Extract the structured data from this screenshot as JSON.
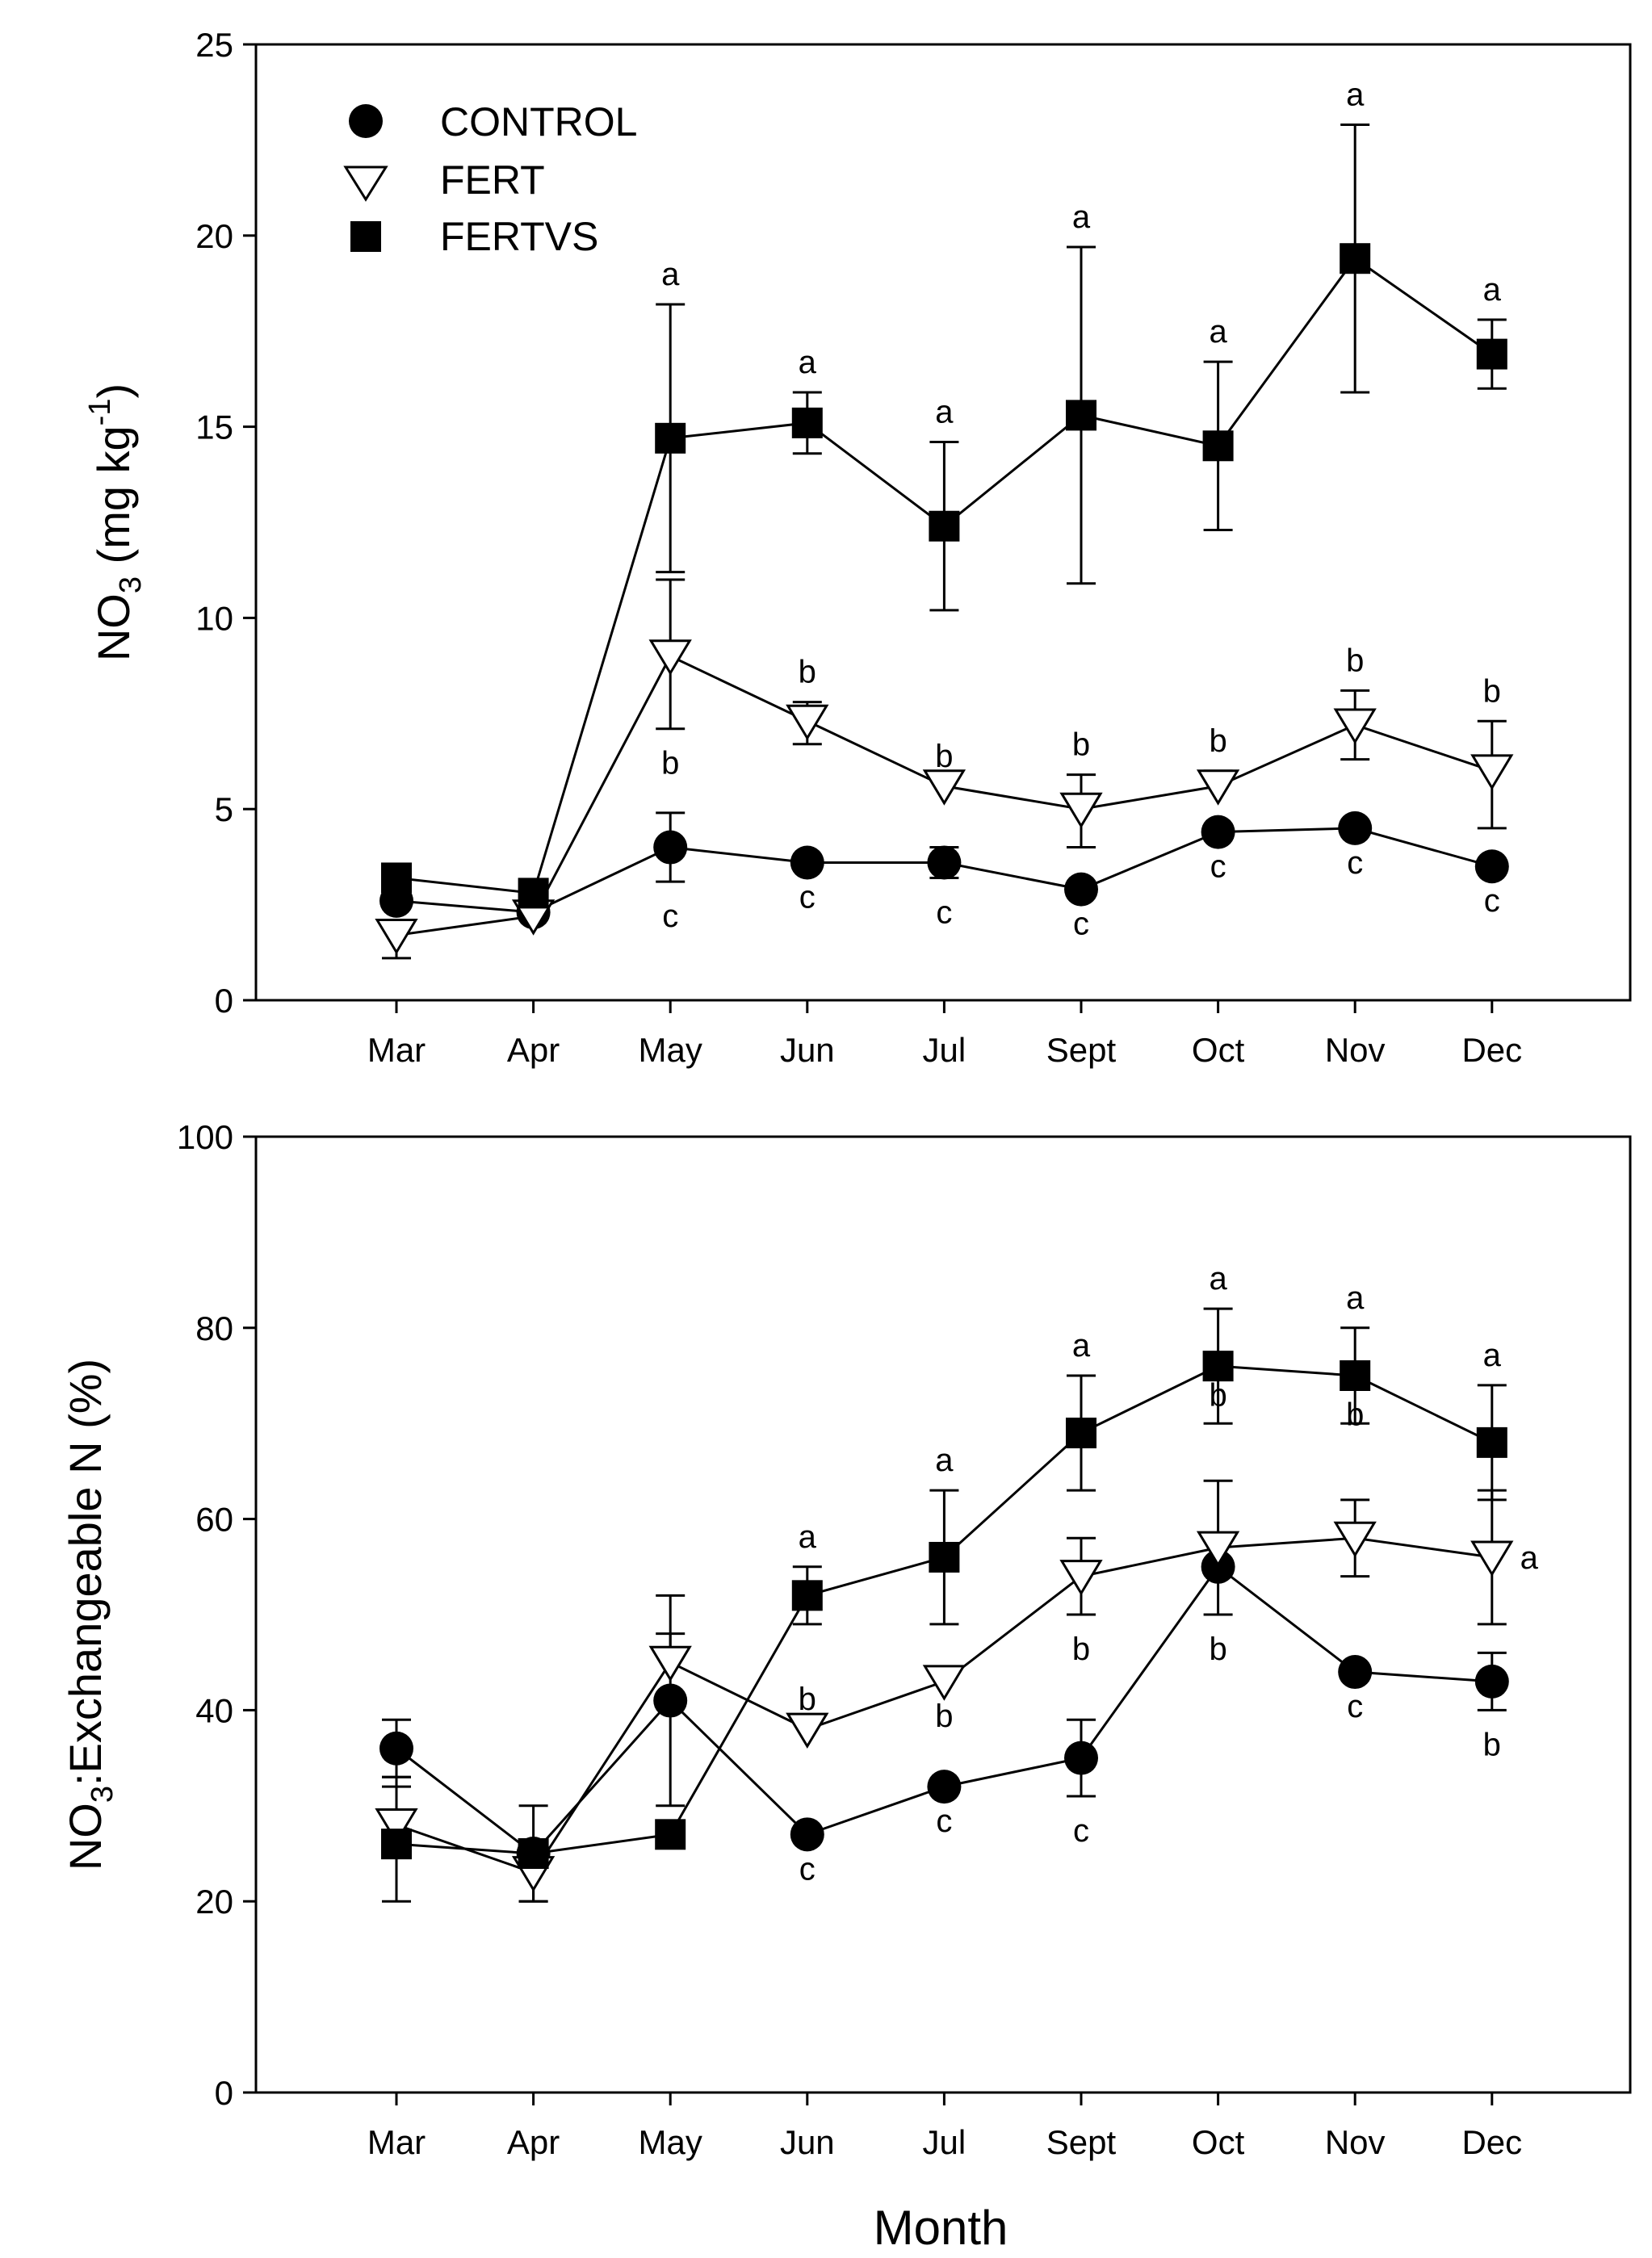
{
  "chart_data": [
    {
      "type": "line",
      "ylabel": "NO3 (mg kg-1)",
      "ylabel_parts": {
        "base": "NO",
        "sub": "3",
        "rest": " (mg kg",
        "sup": "-1",
        "close": ")"
      },
      "xlabel": "",
      "ylim": [
        0,
        25
      ],
      "yticks": [
        0,
        5,
        10,
        15,
        20,
        25
      ],
      "categories": [
        "Mar",
        "Apr",
        "May",
        "Jun",
        "Jul",
        "Sept",
        "Oct",
        "Nov",
        "Dec"
      ],
      "legend": {
        "placement": "top-left",
        "entries": [
          "CONTROL",
          "FERT",
          "FERTVS"
        ]
      },
      "series": [
        {
          "name": "CONTROL",
          "marker": "circle",
          "values": [
            2.6,
            2.3,
            4.0,
            3.6,
            3.6,
            2.9,
            4.4,
            4.5,
            3.5
          ],
          "err_up": [
            null,
            null,
            0.9,
            null,
            0.4,
            null,
            null,
            null,
            null
          ],
          "err_down": [
            null,
            null,
            0.9,
            null,
            0.4,
            null,
            null,
            null,
            null
          ],
          "letters": [
            null,
            null,
            "c",
            "c",
            "c",
            "c",
            "c",
            "c",
            "c"
          ],
          "letter_pos": [
            null,
            null,
            "below",
            "below",
            "below",
            "below",
            "below",
            "below",
            "below"
          ]
        },
        {
          "name": "FERT",
          "marker": "triangle-down",
          "values": [
            1.7,
            2.2,
            9.0,
            7.3,
            5.6,
            5.0,
            5.6,
            7.2,
            6.0
          ],
          "err_up": [
            null,
            null,
            2.0,
            0.5,
            null,
            0.9,
            0.4,
            0.9,
            1.3
          ],
          "err_down": [
            0.6,
            null,
            1.9,
            0.6,
            null,
            1.0,
            null,
            0.9,
            1.5
          ],
          "letters": [
            null,
            null,
            "b",
            "b",
            "b",
            "b",
            "b",
            "b",
            "b"
          ],
          "letter_pos": [
            null,
            null,
            "below",
            "above",
            "above",
            "above",
            "above",
            "above",
            "above"
          ]
        },
        {
          "name": "FERTVS",
          "marker": "square",
          "values": [
            3.2,
            2.8,
            14.7,
            15.1,
            12.4,
            15.3,
            14.5,
            19.4,
            16.9
          ],
          "err_up": [
            null,
            null,
            3.5,
            0.8,
            2.2,
            4.4,
            2.2,
            3.5,
            0.9
          ],
          "err_down": [
            null,
            null,
            3.5,
            0.8,
            2.2,
            4.4,
            2.2,
            3.5,
            0.9
          ],
          "letters": [
            null,
            null,
            "a",
            "a",
            "a",
            "a",
            "a",
            "a",
            "a"
          ],
          "letter_pos": [
            null,
            null,
            "above",
            "above",
            "above",
            "above",
            "above",
            "above",
            "above"
          ]
        }
      ]
    },
    {
      "type": "line",
      "ylabel": "NO3:Exchangeable N (%)",
      "ylabel_parts": {
        "base": "NO",
        "sub": "3",
        "rest": ":Exchangeable N (%)"
      },
      "xlabel": "Month",
      "ylim": [
        0,
        100
      ],
      "yticks": [
        0,
        20,
        40,
        60,
        80,
        100
      ],
      "categories": [
        "Mar",
        "Apr",
        "May",
        "Jun",
        "Jul",
        "Sept",
        "Oct",
        "Nov",
        "Dec"
      ],
      "series": [
        {
          "name": "CONTROL",
          "marker": "circle",
          "values": [
            36,
            25,
            41,
            27,
            32,
            35,
            55,
            44,
            43
          ],
          "err_up": [
            3,
            null,
            7,
            null,
            null,
            4,
            9,
            null,
            3
          ],
          "err_down": [
            3,
            null,
            11,
            null,
            null,
            4,
            5,
            null,
            3
          ],
          "letters": [
            null,
            null,
            null,
            "c",
            "c",
            "c",
            "b",
            "c",
            "b"
          ],
          "letter_pos": [
            null,
            null,
            null,
            "below",
            "below",
            "below",
            "below",
            "below",
            "below"
          ]
        },
        {
          "name": "FERT",
          "marker": "triangle-down",
          "values": [
            28,
            23,
            45,
            38,
            43,
            54,
            57,
            58,
            56
          ],
          "err_up": [
            5,
            null,
            7,
            null,
            null,
            4,
            null,
            4,
            7
          ],
          "err_down": [
            null,
            3,
            null,
            null,
            null,
            4,
            null,
            4,
            7
          ],
          "letters": [
            null,
            null,
            null,
            "b",
            "b",
            "b",
            null,
            null,
            "a"
          ],
          "letter_pos": [
            null,
            null,
            null,
            "above",
            "below",
            "below",
            null,
            null,
            "right"
          ]
        },
        {
          "name": "FERTVS",
          "marker": "square",
          "values": [
            26,
            25,
            27,
            52,
            56,
            69,
            76,
            75,
            68
          ],
          "err_up": [
            6,
            5,
            null,
            3,
            7,
            6,
            6,
            5,
            6
          ],
          "err_down": [
            6,
            5,
            null,
            3,
            7,
            6,
            6,
            5,
            6
          ],
          "letters": [
            null,
            null,
            null,
            "a",
            "a",
            "a",
            "a",
            "a",
            "a"
          ],
          "letter_pos": [
            null,
            null,
            null,
            "above",
            "above",
            "above",
            "above",
            "above",
            "above"
          ]
        }
      ],
      "extra_letters": [
        {
          "category": "Oct",
          "text": "b",
          "value": 73
        },
        {
          "category": "Nov",
          "text": "b",
          "value": 71
        }
      ]
    }
  ]
}
